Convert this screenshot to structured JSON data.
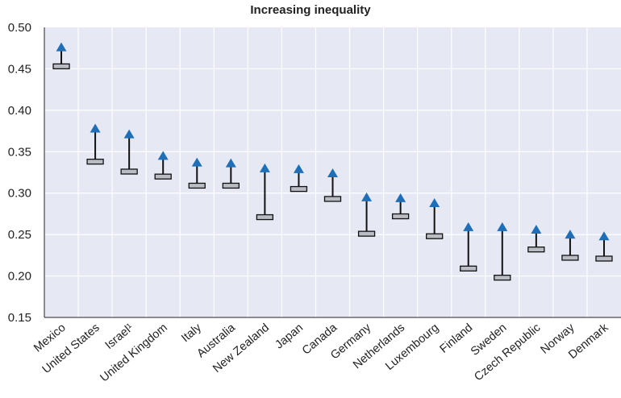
{
  "chart_data": {
    "type": "arrow-range",
    "title": "Increasing inequality",
    "xlabel": "",
    "ylabel": "",
    "ylim": [
      0.15,
      0.5
    ],
    "yticks": [
      "0.50",
      "0.45",
      "0.40",
      "0.35",
      "0.30",
      "0.25",
      "0.20",
      "0.15"
    ],
    "categories": [
      "Mexico",
      "United States",
      "Israel¹",
      "United Kingdom",
      "Italy",
      "Australia",
      "New Zealand",
      "Japan",
      "Canada",
      "Germany",
      "Netherlands",
      "Luxembourg",
      "Finland",
      "Sweden",
      "Czech Republic",
      "Norway",
      "Denmark"
    ],
    "series": [
      {
        "values": [
          0.453,
          0.338,
          0.326,
          0.32,
          0.309,
          0.309,
          0.271,
          0.305,
          0.293,
          0.251,
          0.272,
          0.248,
          0.209,
          0.198,
          0.232,
          0.222,
          0.221
        ]
      },
      {
        "values": [
          0.476,
          0.378,
          0.371,
          0.345,
          0.337,
          0.336,
          0.33,
          0.329,
          0.324,
          0.295,
          0.294,
          0.288,
          0.259,
          0.259,
          0.256,
          0.25,
          0.248
        ]
      }
    ],
    "grid": true,
    "colors": {
      "background": "#e6e8f4",
      "grid": "#ffffff",
      "arrow": "#1f6fb8",
      "marker_fill": "#b9bcc4",
      "stem": "#111111"
    }
  }
}
